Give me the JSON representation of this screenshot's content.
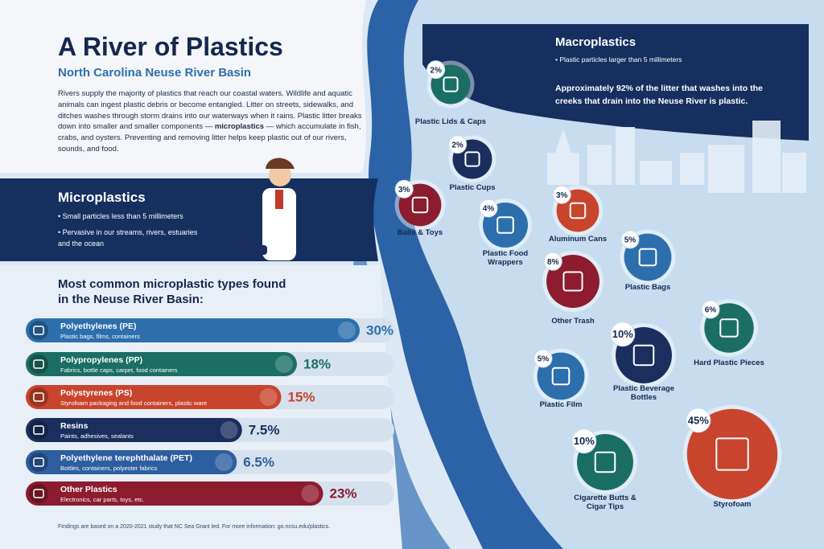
{
  "header": {
    "title": "A River of Plastics",
    "subtitle": "North Carolina Neuse River Basin",
    "intro": [
      "Rivers supply the majority of plastics that reach our coastal waters. Wildlife and aquatic animals can ingest plastic debris or become entangled. Litter on streets, sidewalks, and ditches washes through storm drains into our waterways when it rains. Plastic litter breaks down into smaller and smaller components — ",
      "microplastics",
      " — which accumulate in fish, crabs, and oysters. Preventing and removing litter helps keep plastic out of our rivers, sounds, and food."
    ]
  },
  "microplastics": {
    "title": "Microplastics",
    "bullets": [
      "Small particles less than 5 millimeters",
      "Pervasive in our streams, rivers, estuaries and the ocean"
    ],
    "types_heading": "Most common microplastic types found in the Neuse River Basin:",
    "types": [
      {
        "name": "Polyethylenes (PE)",
        "description": "Plastic bags, films, containers",
        "value": 30,
        "value_label": "30%",
        "color": "#2d6fad"
      },
      {
        "name": "Polypropylenes (PP)",
        "description": "Fabrics, bottle caps, carpet, food containers",
        "value": 18,
        "value_label": "18%",
        "color": "#1b6e63"
      },
      {
        "name": "Polystyrenes (PS)",
        "description": "Styrofoam packaging and food containers, plastic ware",
        "value": 15,
        "value_label": "15%",
        "color": "#c8442c"
      },
      {
        "name": "Resins",
        "description": "Paints, adhesives, sealants",
        "value": 7.5,
        "value_label": "7.5%",
        "color": "#1a2f5e"
      },
      {
        "name": "Polyethylene terephthalate (PET)",
        "description": "Bottles, containers, polyester fabrics",
        "value": 6.5,
        "value_label": "6.5%",
        "color": "#2d5ea0"
      },
      {
        "name": "Other Plastics",
        "description": "Electronics, car parts, toys, etc.",
        "value": 23,
        "value_label": "23%",
        "color": "#8c1c2e"
      }
    ],
    "footnote": "Findings are based on a 2020-2021 study that NC Sea Grant led. For more information: go.ncsu.edu/plastics."
  },
  "macroplastics": {
    "title": "Macroplastics",
    "bullet": "Plastic particles larger than 5 millimeters",
    "statement": "Approximately 92% of the litter that washes into the creeks that drain into the Neuse River is plastic.",
    "items": [
      {
        "label": "Plastic Lids & Caps",
        "value": 2,
        "value_label": "2%",
        "color": "#1b6e63"
      },
      {
        "label": "Plastic Cups",
        "value": 2,
        "value_label": "2%",
        "color": "#1a2f5e"
      },
      {
        "label": "Balls & Toys",
        "value": 3,
        "value_label": "3%",
        "color": "#8c1c2e"
      },
      {
        "label": "Plastic Food Wrappers",
        "value": 4,
        "value_label": "4%",
        "color": "#2d6fad"
      },
      {
        "label": "Aluminum Cans",
        "value": 3,
        "value_label": "3%",
        "color": "#c8442c"
      },
      {
        "label": "Other Trash",
        "value": 8,
        "value_label": "8%",
        "color": "#8c1c2e"
      },
      {
        "label": "Plastic Bags",
        "value": 5,
        "value_label": "5%",
        "color": "#2d6fad"
      },
      {
        "label": "Hard Plastic Pieces",
        "value": 6,
        "value_label": "6%",
        "color": "#1b6e63"
      },
      {
        "label": "Plastic Beverage Bottles",
        "value": 10,
        "value_label": "10%",
        "color": "#1a2f5e"
      },
      {
        "label": "Plastic Film",
        "value": 5,
        "value_label": "5%",
        "color": "#2d6fad"
      },
      {
        "label": "Cigarette Butts & Cigar Tips",
        "value": 10,
        "value_label": "10%",
        "color": "#1b6e63"
      },
      {
        "label": "Styrofoam",
        "value": 45,
        "value_label": "45%",
        "color": "#c8442c"
      }
    ]
  }
}
